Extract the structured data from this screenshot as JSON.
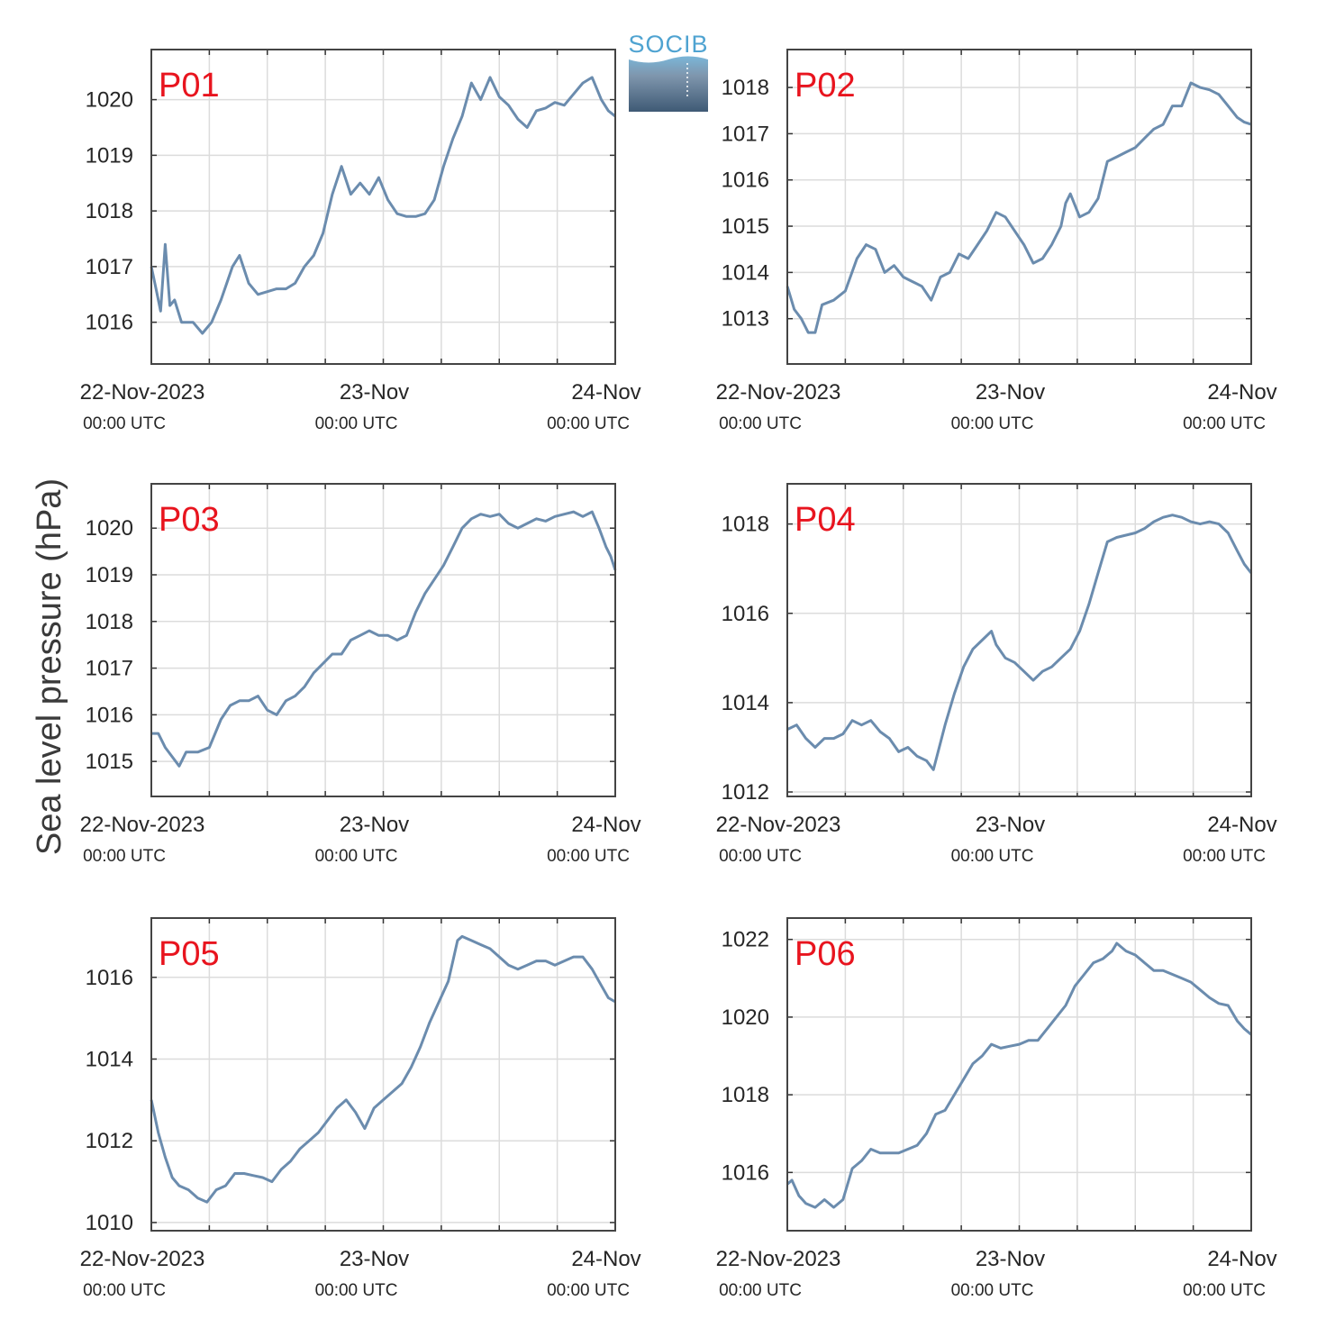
{
  "figure": {
    "ylabel": "Sea level pressure (hPa)",
    "logo_text": "SOCIB",
    "line_color": "#6b8cae",
    "label_color": "#e8141e",
    "x_ticks": [
      {
        "day": 0,
        "label": "22-Nov-2023",
        "sub": "00:00 UTC"
      },
      {
        "day": 1,
        "label": "23-Nov",
        "sub": "00:00 UTC"
      },
      {
        "day": 2,
        "label": "24-Nov",
        "sub": "00:00 UTC"
      }
    ]
  },
  "chart_data": [
    {
      "type": "line",
      "name": "P01",
      "xlim": [
        0,
        2
      ],
      "ylim": [
        1015.25,
        1020.9
      ],
      "yticks": [
        1016,
        1017,
        1018,
        1019,
        1020
      ],
      "x_unit": "days since 22-Nov-2023 00:00 UTC",
      "points": [
        [
          0,
          1017.0
        ],
        [
          0.02,
          1016.6
        ],
        [
          0.04,
          1016.2
        ],
        [
          0.06,
          1017.4
        ],
        [
          0.08,
          1016.3
        ],
        [
          0.1,
          1016.4
        ],
        [
          0.13,
          1016.0
        ],
        [
          0.18,
          1016.0
        ],
        [
          0.22,
          1015.8
        ],
        [
          0.26,
          1016.0
        ],
        [
          0.3,
          1016.4
        ],
        [
          0.35,
          1017.0
        ],
        [
          0.38,
          1017.2
        ],
        [
          0.42,
          1016.7
        ],
        [
          0.46,
          1016.5
        ],
        [
          0.5,
          1016.55
        ],
        [
          0.54,
          1016.6
        ],
        [
          0.58,
          1016.6
        ],
        [
          0.62,
          1016.7
        ],
        [
          0.66,
          1017.0
        ],
        [
          0.7,
          1017.2
        ],
        [
          0.74,
          1017.6
        ],
        [
          0.78,
          1018.3
        ],
        [
          0.82,
          1018.8
        ],
        [
          0.86,
          1018.3
        ],
        [
          0.9,
          1018.5
        ],
        [
          0.94,
          1018.3
        ],
        [
          0.98,
          1018.6
        ],
        [
          1.02,
          1018.2
        ],
        [
          1.06,
          1017.95
        ],
        [
          1.1,
          1017.9
        ],
        [
          1.14,
          1017.9
        ],
        [
          1.18,
          1017.95
        ],
        [
          1.22,
          1018.2
        ],
        [
          1.26,
          1018.8
        ],
        [
          1.3,
          1019.3
        ],
        [
          1.34,
          1019.7
        ],
        [
          1.38,
          1020.3
        ],
        [
          1.42,
          1020.0
        ],
        [
          1.46,
          1020.4
        ],
        [
          1.5,
          1020.05
        ],
        [
          1.54,
          1019.9
        ],
        [
          1.58,
          1019.65
        ],
        [
          1.62,
          1019.5
        ],
        [
          1.66,
          1019.8
        ],
        [
          1.7,
          1019.85
        ],
        [
          1.74,
          1019.95
        ],
        [
          1.78,
          1019.9
        ],
        [
          1.82,
          1020.1
        ],
        [
          1.86,
          1020.3
        ],
        [
          1.9,
          1020.4
        ],
        [
          1.94,
          1020.0
        ],
        [
          1.97,
          1019.8
        ],
        [
          2.0,
          1019.7
        ]
      ]
    },
    {
      "type": "line",
      "name": "P02",
      "xlim": [
        0,
        2
      ],
      "ylim": [
        1012.02,
        1018.82
      ],
      "yticks": [
        1013,
        1014,
        1015,
        1016,
        1017,
        1018
      ],
      "x_unit": "days since 22-Nov-2023 00:00 UTC",
      "points": [
        [
          0,
          1013.7
        ],
        [
          0.03,
          1013.2
        ],
        [
          0.06,
          1013.0
        ],
        [
          0.09,
          1012.7
        ],
        [
          0.12,
          1012.7
        ],
        [
          0.15,
          1013.3
        ],
        [
          0.2,
          1013.4
        ],
        [
          0.25,
          1013.6
        ],
        [
          0.3,
          1014.3
        ],
        [
          0.34,
          1014.6
        ],
        [
          0.38,
          1014.5
        ],
        [
          0.42,
          1014.0
        ],
        [
          0.46,
          1014.15
        ],
        [
          0.5,
          1013.9
        ],
        [
          0.54,
          1013.8
        ],
        [
          0.58,
          1013.7
        ],
        [
          0.62,
          1013.4
        ],
        [
          0.66,
          1013.9
        ],
        [
          0.7,
          1014.0
        ],
        [
          0.74,
          1014.4
        ],
        [
          0.78,
          1014.3
        ],
        [
          0.82,
          1014.6
        ],
        [
          0.86,
          1014.9
        ],
        [
          0.9,
          1015.3
        ],
        [
          0.94,
          1015.2
        ],
        [
          0.98,
          1014.9
        ],
        [
          1.02,
          1014.6
        ],
        [
          1.06,
          1014.2
        ],
        [
          1.1,
          1014.3
        ],
        [
          1.14,
          1014.6
        ],
        [
          1.18,
          1015.0
        ],
        [
          1.2,
          1015.5
        ],
        [
          1.22,
          1015.7
        ],
        [
          1.26,
          1015.2
        ],
        [
          1.3,
          1015.3
        ],
        [
          1.34,
          1015.6
        ],
        [
          1.38,
          1016.4
        ],
        [
          1.42,
          1016.5
        ],
        [
          1.46,
          1016.6
        ],
        [
          1.5,
          1016.7
        ],
        [
          1.54,
          1016.9
        ],
        [
          1.58,
          1017.1
        ],
        [
          1.62,
          1017.2
        ],
        [
          1.66,
          1017.6
        ],
        [
          1.7,
          1017.6
        ],
        [
          1.74,
          1018.1
        ],
        [
          1.78,
          1018.0
        ],
        [
          1.82,
          1017.95
        ],
        [
          1.86,
          1017.85
        ],
        [
          1.9,
          1017.6
        ],
        [
          1.94,
          1017.35
        ],
        [
          1.97,
          1017.25
        ],
        [
          2.0,
          1017.2
        ]
      ]
    },
    {
      "type": "line",
      "name": "P03",
      "xlim": [
        0,
        2
      ],
      "ylim": [
        1014.25,
        1020.95
      ],
      "yticks": [
        1015,
        1016,
        1017,
        1018,
        1019,
        1020
      ],
      "x_unit": "days since 22-Nov-2023 00:00 UTC",
      "points": [
        [
          0,
          1015.6
        ],
        [
          0.03,
          1015.6
        ],
        [
          0.06,
          1015.3
        ],
        [
          0.09,
          1015.1
        ],
        [
          0.12,
          1014.9
        ],
        [
          0.15,
          1015.2
        ],
        [
          0.2,
          1015.2
        ],
        [
          0.25,
          1015.3
        ],
        [
          0.3,
          1015.9
        ],
        [
          0.34,
          1016.2
        ],
        [
          0.38,
          1016.3
        ],
        [
          0.42,
          1016.3
        ],
        [
          0.46,
          1016.4
        ],
        [
          0.5,
          1016.1
        ],
        [
          0.54,
          1016.0
        ],
        [
          0.58,
          1016.3
        ],
        [
          0.62,
          1016.4
        ],
        [
          0.66,
          1016.6
        ],
        [
          0.7,
          1016.9
        ],
        [
          0.74,
          1017.1
        ],
        [
          0.78,
          1017.3
        ],
        [
          0.82,
          1017.3
        ],
        [
          0.86,
          1017.6
        ],
        [
          0.9,
          1017.7
        ],
        [
          0.94,
          1017.8
        ],
        [
          0.98,
          1017.7
        ],
        [
          1.02,
          1017.7
        ],
        [
          1.06,
          1017.6
        ],
        [
          1.1,
          1017.7
        ],
        [
          1.14,
          1018.2
        ],
        [
          1.18,
          1018.6
        ],
        [
          1.22,
          1018.9
        ],
        [
          1.26,
          1019.2
        ],
        [
          1.3,
          1019.6
        ],
        [
          1.34,
          1020.0
        ],
        [
          1.38,
          1020.2
        ],
        [
          1.42,
          1020.3
        ],
        [
          1.46,
          1020.25
        ],
        [
          1.5,
          1020.3
        ],
        [
          1.54,
          1020.1
        ],
        [
          1.58,
          1020.0
        ],
        [
          1.62,
          1020.1
        ],
        [
          1.66,
          1020.2
        ],
        [
          1.7,
          1020.15
        ],
        [
          1.74,
          1020.25
        ],
        [
          1.78,
          1020.3
        ],
        [
          1.82,
          1020.35
        ],
        [
          1.86,
          1020.25
        ],
        [
          1.9,
          1020.35
        ],
        [
          1.93,
          1020.0
        ],
        [
          1.96,
          1019.6
        ],
        [
          1.98,
          1019.4
        ],
        [
          2.0,
          1019.1
        ]
      ]
    },
    {
      "type": "line",
      "name": "P04",
      "xlim": [
        0,
        2
      ],
      "ylim": [
        1011.9,
        1018.9
      ],
      "yticks": [
        1012,
        1014,
        1016,
        1018
      ],
      "x_unit": "days since 22-Nov-2023 00:00 UTC",
      "points": [
        [
          0,
          1013.4
        ],
        [
          0.04,
          1013.5
        ],
        [
          0.08,
          1013.2
        ],
        [
          0.12,
          1013.0
        ],
        [
          0.16,
          1013.2
        ],
        [
          0.2,
          1013.2
        ],
        [
          0.24,
          1013.3
        ],
        [
          0.28,
          1013.6
        ],
        [
          0.32,
          1013.5
        ],
        [
          0.36,
          1013.6
        ],
        [
          0.4,
          1013.35
        ],
        [
          0.44,
          1013.2
        ],
        [
          0.48,
          1012.9
        ],
        [
          0.52,
          1013.0
        ],
        [
          0.56,
          1012.8
        ],
        [
          0.6,
          1012.7
        ],
        [
          0.63,
          1012.5
        ],
        [
          0.65,
          1012.9
        ],
        [
          0.68,
          1013.5
        ],
        [
          0.72,
          1014.2
        ],
        [
          0.76,
          1014.8
        ],
        [
          0.8,
          1015.2
        ],
        [
          0.84,
          1015.4
        ],
        [
          0.88,
          1015.6
        ],
        [
          0.9,
          1015.3
        ],
        [
          0.94,
          1015.0
        ],
        [
          0.98,
          1014.9
        ],
        [
          1.02,
          1014.7
        ],
        [
          1.06,
          1014.5
        ],
        [
          1.1,
          1014.7
        ],
        [
          1.14,
          1014.8
        ],
        [
          1.18,
          1015.0
        ],
        [
          1.22,
          1015.2
        ],
        [
          1.26,
          1015.6
        ],
        [
          1.3,
          1016.2
        ],
        [
          1.34,
          1016.9
        ],
        [
          1.38,
          1017.6
        ],
        [
          1.42,
          1017.7
        ],
        [
          1.46,
          1017.75
        ],
        [
          1.5,
          1017.8
        ],
        [
          1.54,
          1017.9
        ],
        [
          1.58,
          1018.05
        ],
        [
          1.62,
          1018.15
        ],
        [
          1.66,
          1018.2
        ],
        [
          1.7,
          1018.15
        ],
        [
          1.74,
          1018.05
        ],
        [
          1.78,
          1018.0
        ],
        [
          1.82,
          1018.05
        ],
        [
          1.86,
          1018.0
        ],
        [
          1.9,
          1017.8
        ],
        [
          1.94,
          1017.4
        ],
        [
          1.97,
          1017.1
        ],
        [
          2.0,
          1016.9
        ]
      ]
    },
    {
      "type": "line",
      "name": "P05",
      "xlim": [
        0,
        2
      ],
      "ylim": [
        1009.8,
        1017.45
      ],
      "yticks": [
        1010,
        1012,
        1014,
        1016
      ],
      "x_unit": "days since 22-Nov-2023 00:00 UTC",
      "points": [
        [
          0,
          1013.0
        ],
        [
          0.03,
          1012.2
        ],
        [
          0.06,
          1011.6
        ],
        [
          0.09,
          1011.1
        ],
        [
          0.12,
          1010.9
        ],
        [
          0.16,
          1010.8
        ],
        [
          0.2,
          1010.6
        ],
        [
          0.24,
          1010.5
        ],
        [
          0.28,
          1010.8
        ],
        [
          0.32,
          1010.9
        ],
        [
          0.36,
          1011.2
        ],
        [
          0.4,
          1011.2
        ],
        [
          0.44,
          1011.15
        ],
        [
          0.48,
          1011.1
        ],
        [
          0.52,
          1011.0
        ],
        [
          0.56,
          1011.3
        ],
        [
          0.6,
          1011.5
        ],
        [
          0.64,
          1011.8
        ],
        [
          0.68,
          1012.0
        ],
        [
          0.72,
          1012.2
        ],
        [
          0.76,
          1012.5
        ],
        [
          0.8,
          1012.8
        ],
        [
          0.84,
          1013.0
        ],
        [
          0.88,
          1012.7
        ],
        [
          0.92,
          1012.3
        ],
        [
          0.96,
          1012.8
        ],
        [
          1.0,
          1013.0
        ],
        [
          1.04,
          1013.2
        ],
        [
          1.08,
          1013.4
        ],
        [
          1.12,
          1013.8
        ],
        [
          1.16,
          1014.3
        ],
        [
          1.2,
          1014.9
        ],
        [
          1.24,
          1015.4
        ],
        [
          1.28,
          1015.9
        ],
        [
          1.3,
          1016.4
        ],
        [
          1.32,
          1016.9
        ],
        [
          1.34,
          1017.0
        ],
        [
          1.38,
          1016.9
        ],
        [
          1.42,
          1016.8
        ],
        [
          1.46,
          1016.7
        ],
        [
          1.5,
          1016.5
        ],
        [
          1.54,
          1016.3
        ],
        [
          1.58,
          1016.2
        ],
        [
          1.62,
          1016.3
        ],
        [
          1.66,
          1016.4
        ],
        [
          1.7,
          1016.4
        ],
        [
          1.74,
          1016.3
        ],
        [
          1.78,
          1016.4
        ],
        [
          1.82,
          1016.5
        ],
        [
          1.86,
          1016.5
        ],
        [
          1.9,
          1016.2
        ],
        [
          1.94,
          1015.8
        ],
        [
          1.97,
          1015.5
        ],
        [
          2.0,
          1015.4
        ]
      ]
    },
    {
      "type": "line",
      "name": "P06",
      "xlim": [
        0,
        2
      ],
      "ylim": [
        1014.5,
        1022.55
      ],
      "yticks": [
        1016,
        1018,
        1020,
        1022
      ],
      "x_unit": "days since 22-Nov-2023 00:00 UTC",
      "points": [
        [
          0,
          1015.7
        ],
        [
          0.02,
          1015.8
        ],
        [
          0.05,
          1015.4
        ],
        [
          0.08,
          1015.2
        ],
        [
          0.12,
          1015.1
        ],
        [
          0.16,
          1015.3
        ],
        [
          0.2,
          1015.1
        ],
        [
          0.24,
          1015.3
        ],
        [
          0.28,
          1016.1
        ],
        [
          0.32,
          1016.3
        ],
        [
          0.36,
          1016.6
        ],
        [
          0.4,
          1016.5
        ],
        [
          0.44,
          1016.5
        ],
        [
          0.48,
          1016.5
        ],
        [
          0.52,
          1016.6
        ],
        [
          0.56,
          1016.7
        ],
        [
          0.6,
          1017.0
        ],
        [
          0.64,
          1017.5
        ],
        [
          0.68,
          1017.6
        ],
        [
          0.72,
          1018.0
        ],
        [
          0.76,
          1018.4
        ],
        [
          0.8,
          1018.8
        ],
        [
          0.84,
          1019.0
        ],
        [
          0.88,
          1019.3
        ],
        [
          0.92,
          1019.2
        ],
        [
          0.96,
          1019.25
        ],
        [
          1.0,
          1019.3
        ],
        [
          1.04,
          1019.4
        ],
        [
          1.08,
          1019.4
        ],
        [
          1.12,
          1019.7
        ],
        [
          1.16,
          1020.0
        ],
        [
          1.2,
          1020.3
        ],
        [
          1.24,
          1020.8
        ],
        [
          1.28,
          1021.1
        ],
        [
          1.32,
          1021.4
        ],
        [
          1.36,
          1021.5
        ],
        [
          1.4,
          1021.7
        ],
        [
          1.42,
          1021.9
        ],
        [
          1.46,
          1021.7
        ],
        [
          1.5,
          1021.6
        ],
        [
          1.54,
          1021.4
        ],
        [
          1.58,
          1021.2
        ],
        [
          1.62,
          1021.2
        ],
        [
          1.66,
          1021.1
        ],
        [
          1.7,
          1021.0
        ],
        [
          1.74,
          1020.9
        ],
        [
          1.78,
          1020.7
        ],
        [
          1.82,
          1020.5
        ],
        [
          1.86,
          1020.35
        ],
        [
          1.9,
          1020.3
        ],
        [
          1.94,
          1019.9
        ],
        [
          1.97,
          1019.7
        ],
        [
          2.0,
          1019.55
        ]
      ]
    }
  ]
}
